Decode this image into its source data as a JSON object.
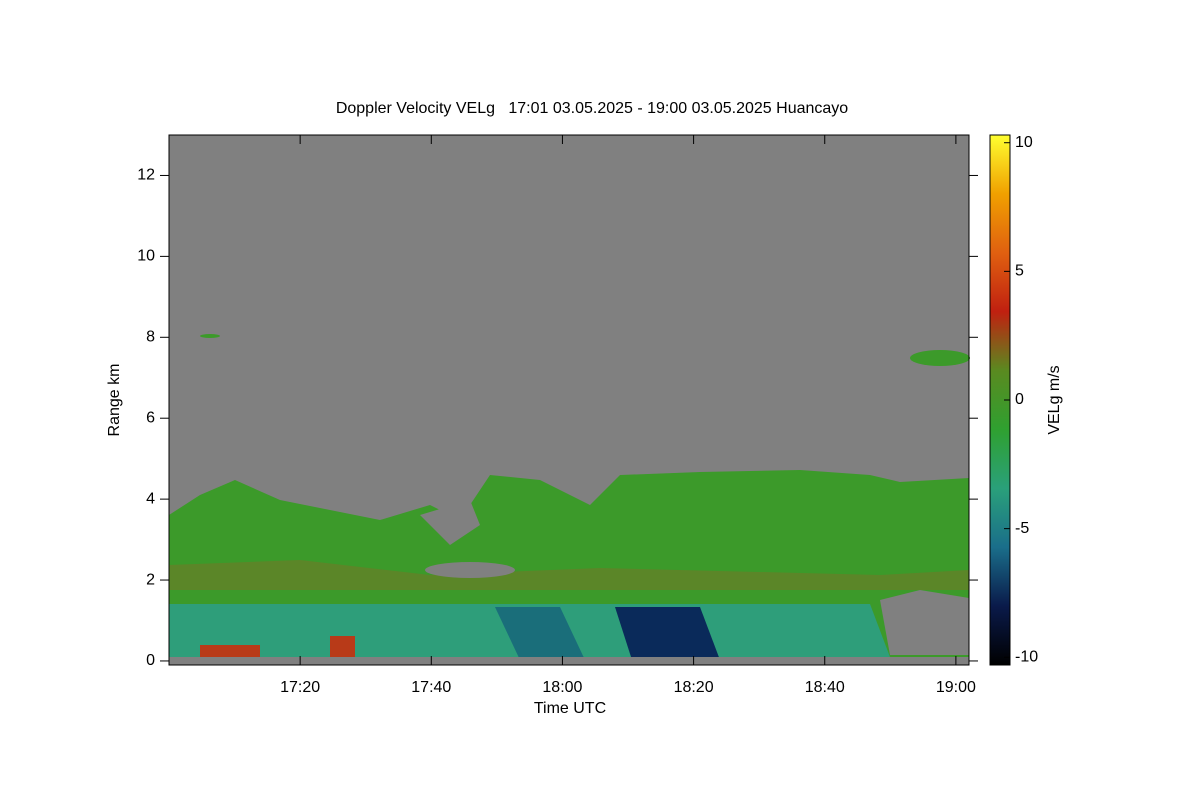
{
  "chart_data": {
    "type": "heatmap",
    "title": "Doppler Velocity VELg   17:01 03.05.2025 - 19:00 03.05.2025 Huancayo",
    "x_label": "Time UTC",
    "y_label": "Range km",
    "xlim": [
      1020,
      1142
    ],
    "xticks": [
      {
        "value": 1040,
        "label": "17:20"
      },
      {
        "value": 1060,
        "label": "17:40"
      },
      {
        "value": 1080,
        "label": "18:00"
      },
      {
        "value": 1100,
        "label": "18:20"
      },
      {
        "value": 1120,
        "label": "18:40"
      },
      {
        "value": 1140,
        "label": "19:00"
      }
    ],
    "ylim": [
      -0.1,
      13
    ],
    "yticks": [
      0,
      2,
      4,
      6,
      8,
      10,
      12
    ],
    "colorbar": {
      "label": "VELg m/s",
      "lim": [
        -10.3,
        10.3
      ],
      "ticks": [
        10,
        5,
        0,
        -5,
        -10
      ],
      "colors": [
        "#000000",
        "#0a1a4a",
        "#1a6e8a",
        "#2aa07a",
        "#2fa030",
        "#5a8a20",
        "#c02010",
        "#e06010",
        "#f0a000",
        "#ffff30"
      ]
    }
  }
}
